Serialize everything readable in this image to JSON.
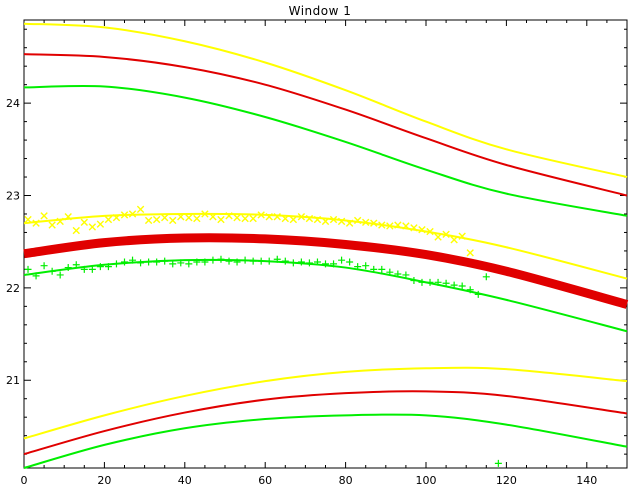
{
  "window": {
    "title": "Window 1"
  },
  "colors": {
    "yellow": "#ffff00",
    "red": "#e00000",
    "green": "#00ee00",
    "axis": "#000000"
  },
  "chart_data": {
    "type": "line",
    "title": "Window 1",
    "xlabel": "",
    "ylabel": "",
    "xlim": [
      0,
      150
    ],
    "ylim": [
      20.05,
      24.9
    ],
    "grid": false,
    "x_ticks": [
      0,
      20,
      40,
      60,
      80,
      100,
      120,
      140
    ],
    "y_ticks": [
      21,
      22,
      23,
      24
    ],
    "series": [
      {
        "color": "yellow",
        "style": "line",
        "x": [
          0,
          20,
          40,
          60,
          80,
          100,
          120,
          150
        ],
        "y": [
          24.86,
          24.82,
          24.67,
          24.44,
          24.14,
          23.8,
          23.5,
          23.2
        ]
      },
      {
        "color": "red",
        "style": "line",
        "x": [
          0,
          20,
          40,
          60,
          80,
          100,
          120,
          150
        ],
        "y": [
          24.53,
          24.5,
          24.39,
          24.2,
          23.93,
          23.62,
          23.33,
          23.0
        ]
      },
      {
        "color": "green",
        "style": "line",
        "x": [
          0,
          20,
          40,
          60,
          80,
          100,
          120,
          150
        ],
        "y": [
          24.17,
          24.18,
          24.06,
          23.85,
          23.58,
          23.28,
          23.02,
          22.78
        ]
      },
      {
        "color": "yellow",
        "style": "line",
        "x": [
          0,
          20,
          40,
          60,
          80,
          100,
          120,
          150
        ],
        "y": [
          22.7,
          22.78,
          22.8,
          22.79,
          22.73,
          22.61,
          22.44,
          22.1
        ]
      },
      {
        "color": "red",
        "style": "band",
        "x": [
          0,
          20,
          40,
          60,
          80,
          100,
          120,
          150
        ],
        "y": [
          22.37,
          22.49,
          22.54,
          22.53,
          22.47,
          22.36,
          22.18,
          21.82
        ]
      },
      {
        "color": "green",
        "style": "line",
        "x": [
          0,
          20,
          40,
          60,
          80,
          100,
          120,
          150
        ],
        "y": [
          22.14,
          22.25,
          22.3,
          22.29,
          22.22,
          22.06,
          21.87,
          21.53
        ]
      },
      {
        "color": "yellow",
        "style": "line",
        "x": [
          0,
          20,
          40,
          60,
          80,
          100,
          120,
          150
        ],
        "y": [
          20.37,
          20.62,
          20.83,
          20.99,
          21.09,
          21.13,
          21.12,
          20.99
        ]
      },
      {
        "color": "red",
        "style": "line",
        "x": [
          0,
          20,
          40,
          60,
          80,
          100,
          120,
          150
        ],
        "y": [
          20.2,
          20.45,
          20.65,
          20.79,
          20.86,
          20.88,
          20.83,
          20.64
        ]
      },
      {
        "color": "green",
        "style": "line",
        "x": [
          0,
          20,
          40,
          60,
          80,
          100,
          120,
          150
        ],
        "y": [
          20.05,
          20.3,
          20.48,
          20.58,
          20.62,
          20.62,
          20.52,
          20.28
        ]
      },
      {
        "color": "yellow",
        "style": "x-marker",
        "x": [
          1,
          3,
          5,
          7,
          9,
          11,
          13,
          15,
          17,
          19,
          21,
          23,
          25,
          27,
          29,
          31,
          33,
          35,
          37,
          39,
          41,
          43,
          45,
          47,
          49,
          51,
          53,
          55,
          57,
          59,
          61,
          63,
          65,
          67,
          69,
          71,
          73,
          75,
          77,
          79,
          81,
          83,
          85,
          87,
          89,
          91,
          93,
          95,
          97,
          99,
          101,
          103,
          105,
          107,
          109,
          111
        ],
        "y": [
          22.74,
          22.7,
          22.78,
          22.68,
          22.72,
          22.77,
          22.62,
          22.71,
          22.66,
          22.69,
          22.74,
          22.76,
          22.79,
          22.8,
          22.85,
          22.73,
          22.74,
          22.76,
          22.73,
          22.77,
          22.76,
          22.75,
          22.8,
          22.77,
          22.74,
          22.78,
          22.76,
          22.75,
          22.75,
          22.79,
          22.77,
          22.77,
          22.75,
          22.74,
          22.77,
          22.75,
          22.74,
          22.72,
          22.74,
          22.72,
          22.7,
          22.73,
          22.71,
          22.7,
          22.68,
          22.67,
          22.68,
          22.67,
          22.65,
          22.63,
          22.61,
          22.55,
          22.58,
          22.52,
          22.56,
          22.38
        ]
      },
      {
        "color": "green",
        "style": "plus-marker",
        "x": [
          1,
          3,
          5,
          7,
          9,
          11,
          13,
          15,
          17,
          19,
          21,
          23,
          25,
          27,
          29,
          31,
          33,
          35,
          37,
          39,
          41,
          43,
          45,
          47,
          49,
          51,
          53,
          55,
          57,
          59,
          61,
          63,
          65,
          67,
          69,
          71,
          73,
          75,
          77,
          79,
          81,
          83,
          85,
          87,
          89,
          91,
          93,
          95,
          97,
          99,
          101,
          103,
          105,
          107,
          109,
          111,
          113,
          115,
          118
        ],
        "y": [
          22.2,
          22.13,
          22.24,
          22.18,
          22.14,
          22.22,
          22.25,
          22.2,
          22.2,
          22.23,
          22.23,
          22.26,
          22.28,
          22.3,
          22.27,
          22.28,
          22.28,
          22.29,
          22.26,
          22.27,
          22.26,
          22.28,
          22.28,
          22.3,
          22.31,
          22.29,
          22.28,
          22.3,
          22.29,
          22.29,
          22.29,
          22.31,
          22.29,
          22.27,
          22.28,
          22.27,
          22.28,
          22.26,
          22.26,
          22.3,
          22.28,
          22.23,
          22.24,
          22.2,
          22.2,
          22.17,
          22.15,
          22.14,
          22.08,
          22.06,
          22.06,
          22.06,
          22.05,
          22.03,
          22.02,
          21.98,
          21.93,
          22.12,
          20.1
        ]
      }
    ]
  }
}
